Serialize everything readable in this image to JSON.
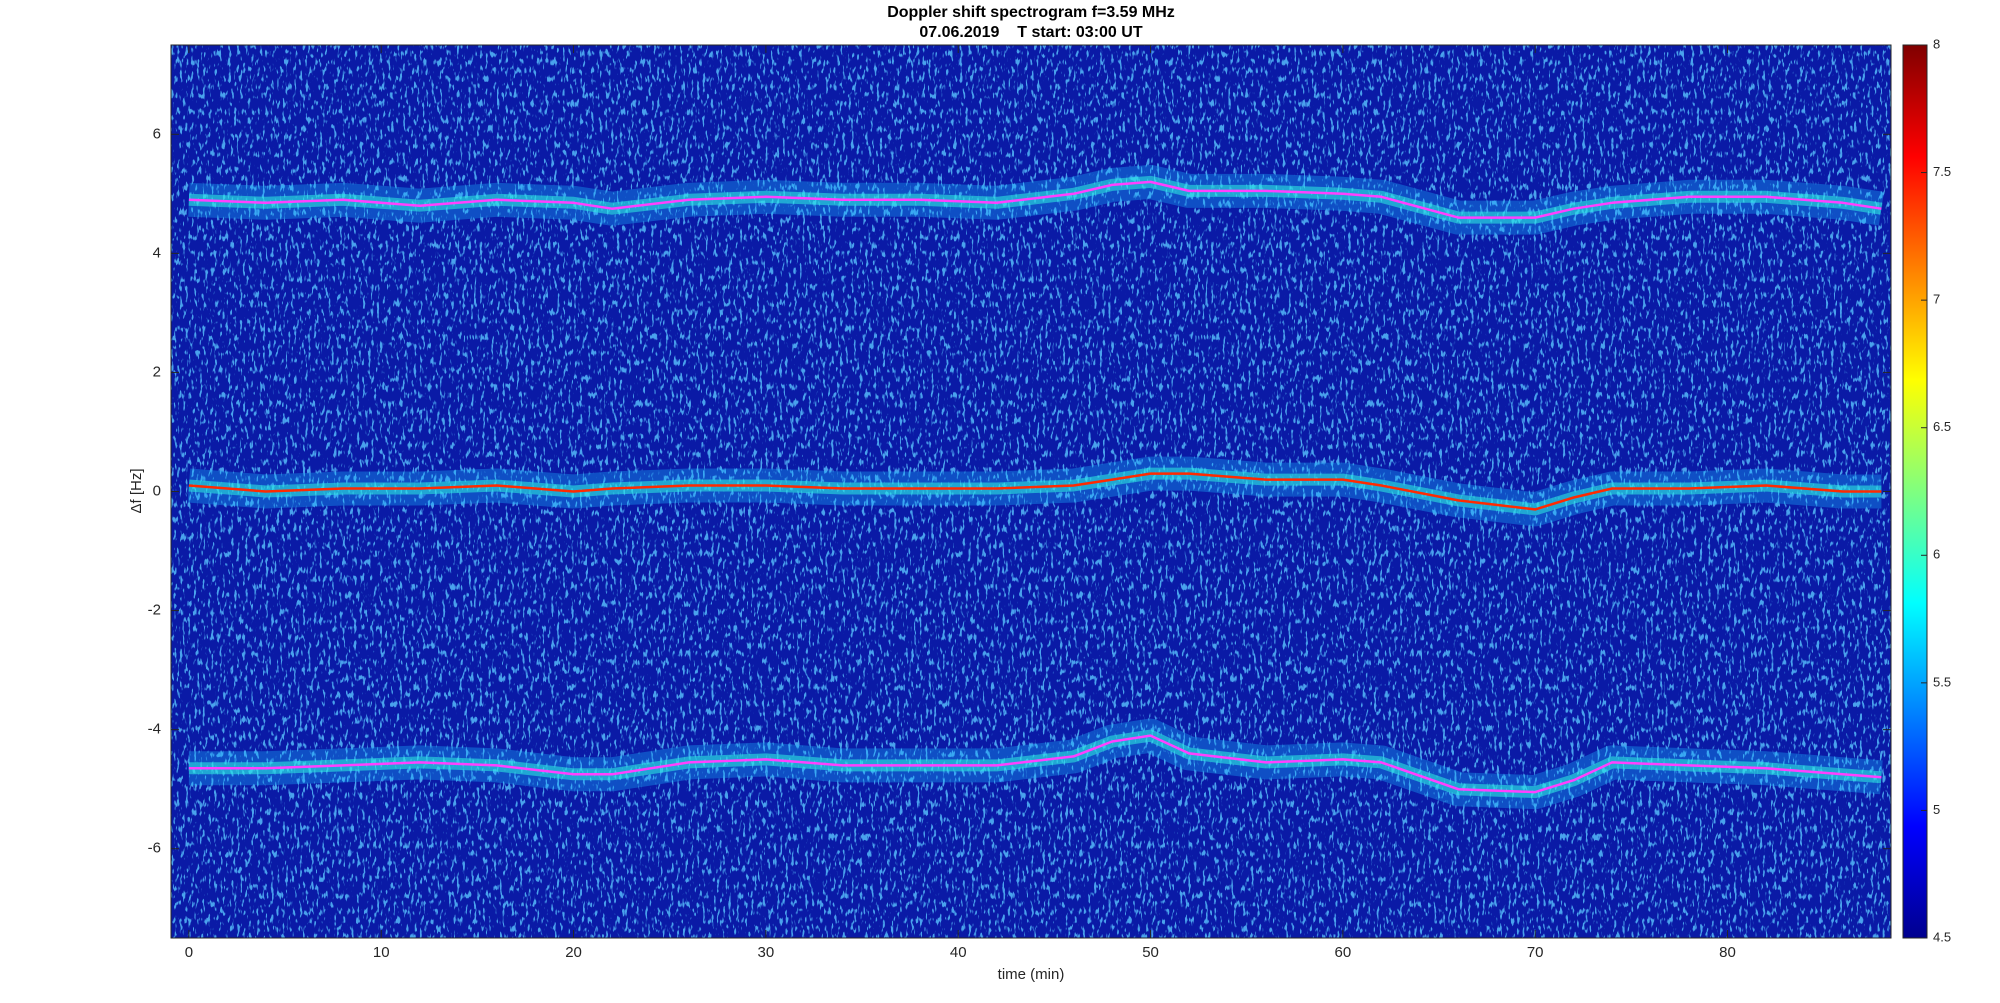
{
  "chart_data": {
    "type": "spectrogram",
    "title": "Doppler shift spectrogram f=3.59 MHz",
    "subtitle": "07.06.2019    T start: 03:00 UT",
    "xlabel": "time (min)",
    "ylabel": "Δf [Hz]",
    "x": [
      0,
      4,
      8,
      12,
      16,
      20,
      22,
      26,
      30,
      34,
      38,
      42,
      46,
      48,
      50,
      52,
      56,
      60,
      62,
      66,
      70,
      72,
      74,
      78,
      82,
      86,
      88
    ],
    "series": [
      {
        "color": "#ff40ff",
        "values": [
          4.9,
          4.85,
          4.9,
          4.8,
          4.9,
          4.85,
          4.75,
          4.9,
          4.95,
          4.9,
          4.9,
          4.85,
          5.0,
          5.15,
          5.2,
          5.05,
          5.05,
          5.0,
          4.95,
          4.6,
          4.6,
          4.75,
          4.85,
          4.95,
          4.95,
          4.85,
          4.75
        ]
      },
      {
        "color": "#ff2a00",
        "values": [
          0.1,
          0.0,
          0.05,
          0.05,
          0.1,
          0.0,
          0.05,
          0.1,
          0.1,
          0.05,
          0.05,
          0.05,
          0.1,
          0.2,
          0.3,
          0.3,
          0.2,
          0.2,
          0.1,
          -0.15,
          -0.3,
          -0.1,
          0.05,
          0.05,
          0.1,
          0.0,
          0.0
        ]
      },
      {
        "color": "#ff40ff",
        "values": [
          -4.65,
          -4.65,
          -4.6,
          -4.55,
          -4.6,
          -4.75,
          -4.75,
          -4.55,
          -4.5,
          -4.6,
          -4.6,
          -4.6,
          -4.45,
          -4.2,
          -4.1,
          -4.4,
          -4.55,
          -4.5,
          -4.55,
          -5.0,
          -5.05,
          -4.85,
          -4.55,
          -4.6,
          -4.65,
          -4.75,
          -4.8
        ]
      }
    ],
    "xlim": [
      -0.93,
      88.5
    ],
    "ylim": [
      -7.5,
      7.5
    ],
    "xticks": [
      0,
      10,
      20,
      30,
      40,
      50,
      60,
      70,
      80
    ],
    "yticks": [
      -6,
      -4,
      -2,
      0,
      2,
      4,
      6
    ],
    "colormap": "jet",
    "clim": [
      4.5,
      8
    ],
    "cticks": [
      4.5,
      5,
      5.5,
      6,
      6.5,
      7,
      7.5,
      8
    ]
  }
}
